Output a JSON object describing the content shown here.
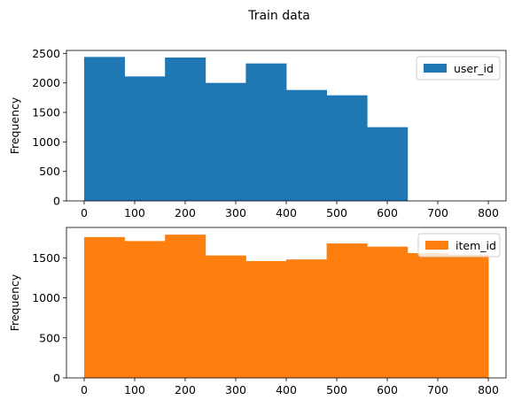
{
  "figure": {
    "title": "Train data"
  },
  "chart_data": [
    {
      "type": "bar",
      "subtype": "histogram",
      "xlim": [
        -35,
        835
      ],
      "ylim": [
        0,
        2550
      ],
      "xticks": [
        0,
        100,
        200,
        300,
        400,
        500,
        600,
        700,
        800
      ],
      "yticks": [
        0,
        500,
        1000,
        1500,
        2000,
        2500
      ],
      "ylabel": "Frequency",
      "xlabel": "",
      "legend": "top-right",
      "grid": false,
      "series": [
        {
          "name": "user_id",
          "color": "#1f77b4",
          "bin_edges": [
            0,
            80,
            160,
            240,
            320,
            400,
            480,
            560,
            640,
            720,
            800
          ],
          "values": [
            2440,
            2110,
            2430,
            2000,
            2330,
            1880,
            1790,
            1250,
            0,
            0
          ]
        }
      ]
    },
    {
      "type": "bar",
      "subtype": "histogram",
      "xlim": [
        -35,
        835
      ],
      "ylim": [
        0,
        1880
      ],
      "xticks": [
        0,
        100,
        200,
        300,
        400,
        500,
        600,
        700,
        800
      ],
      "yticks": [
        0,
        500,
        1000,
        1500
      ],
      "ylabel": "Frequency",
      "xlabel": "",
      "legend": "top-right",
      "grid": false,
      "series": [
        {
          "name": "item_id",
          "color": "#ff7f0e",
          "bin_edges": [
            0,
            80,
            160,
            240,
            320,
            400,
            480,
            560,
            640,
            720,
            800
          ],
          "values": [
            1760,
            1710,
            1790,
            1530,
            1460,
            1480,
            1680,
            1640,
            1560,
            1540
          ]
        }
      ]
    }
  ]
}
